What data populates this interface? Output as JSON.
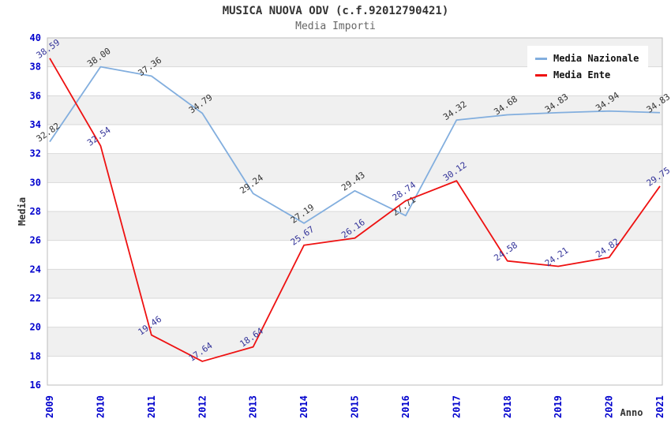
{
  "header": {
    "title": "MUSICA NUOVA ODV (c.f.92012790421)",
    "subtitle": "Media Importi"
  },
  "chart_data": {
    "type": "line",
    "title": "MUSICA NUOVA ODV (c.f.92012790421)",
    "subtitle": "Media Importi",
    "xlabel": "Anno",
    "ylabel": "Media",
    "categories": [
      "2009",
      "2010",
      "2011",
      "2012",
      "2013",
      "2014",
      "2015",
      "2016",
      "2017",
      "2018",
      "2019",
      "2020",
      "2021"
    ],
    "series": [
      {
        "name": "Media Nazionale",
        "color": "#82aede",
        "label_color": "#333333",
        "values": [
          32.82,
          38.0,
          37.36,
          34.79,
          29.24,
          27.19,
          29.43,
          27.71,
          34.32,
          34.68,
          34.83,
          34.94,
          34.83
        ]
      },
      {
        "name": "Media Ente",
        "color": "#ee1111",
        "label_color": "#333399",
        "values": [
          38.59,
          32.54,
          19.46,
          17.64,
          18.64,
          25.67,
          26.16,
          28.74,
          30.12,
          24.58,
          24.21,
          24.82,
          29.75
        ]
      }
    ],
    "ylim": [
      16,
      40
    ],
    "ytick_step": 2,
    "grid": "horizontal",
    "band_fill_on": true,
    "legend_position": "top-right",
    "colors": {
      "tick_label": "#0000cd",
      "band": "#f0f0f0",
      "grid": "#d9d9d9",
      "border": "#bcbcbc",
      "axis_title": "#333333"
    }
  }
}
